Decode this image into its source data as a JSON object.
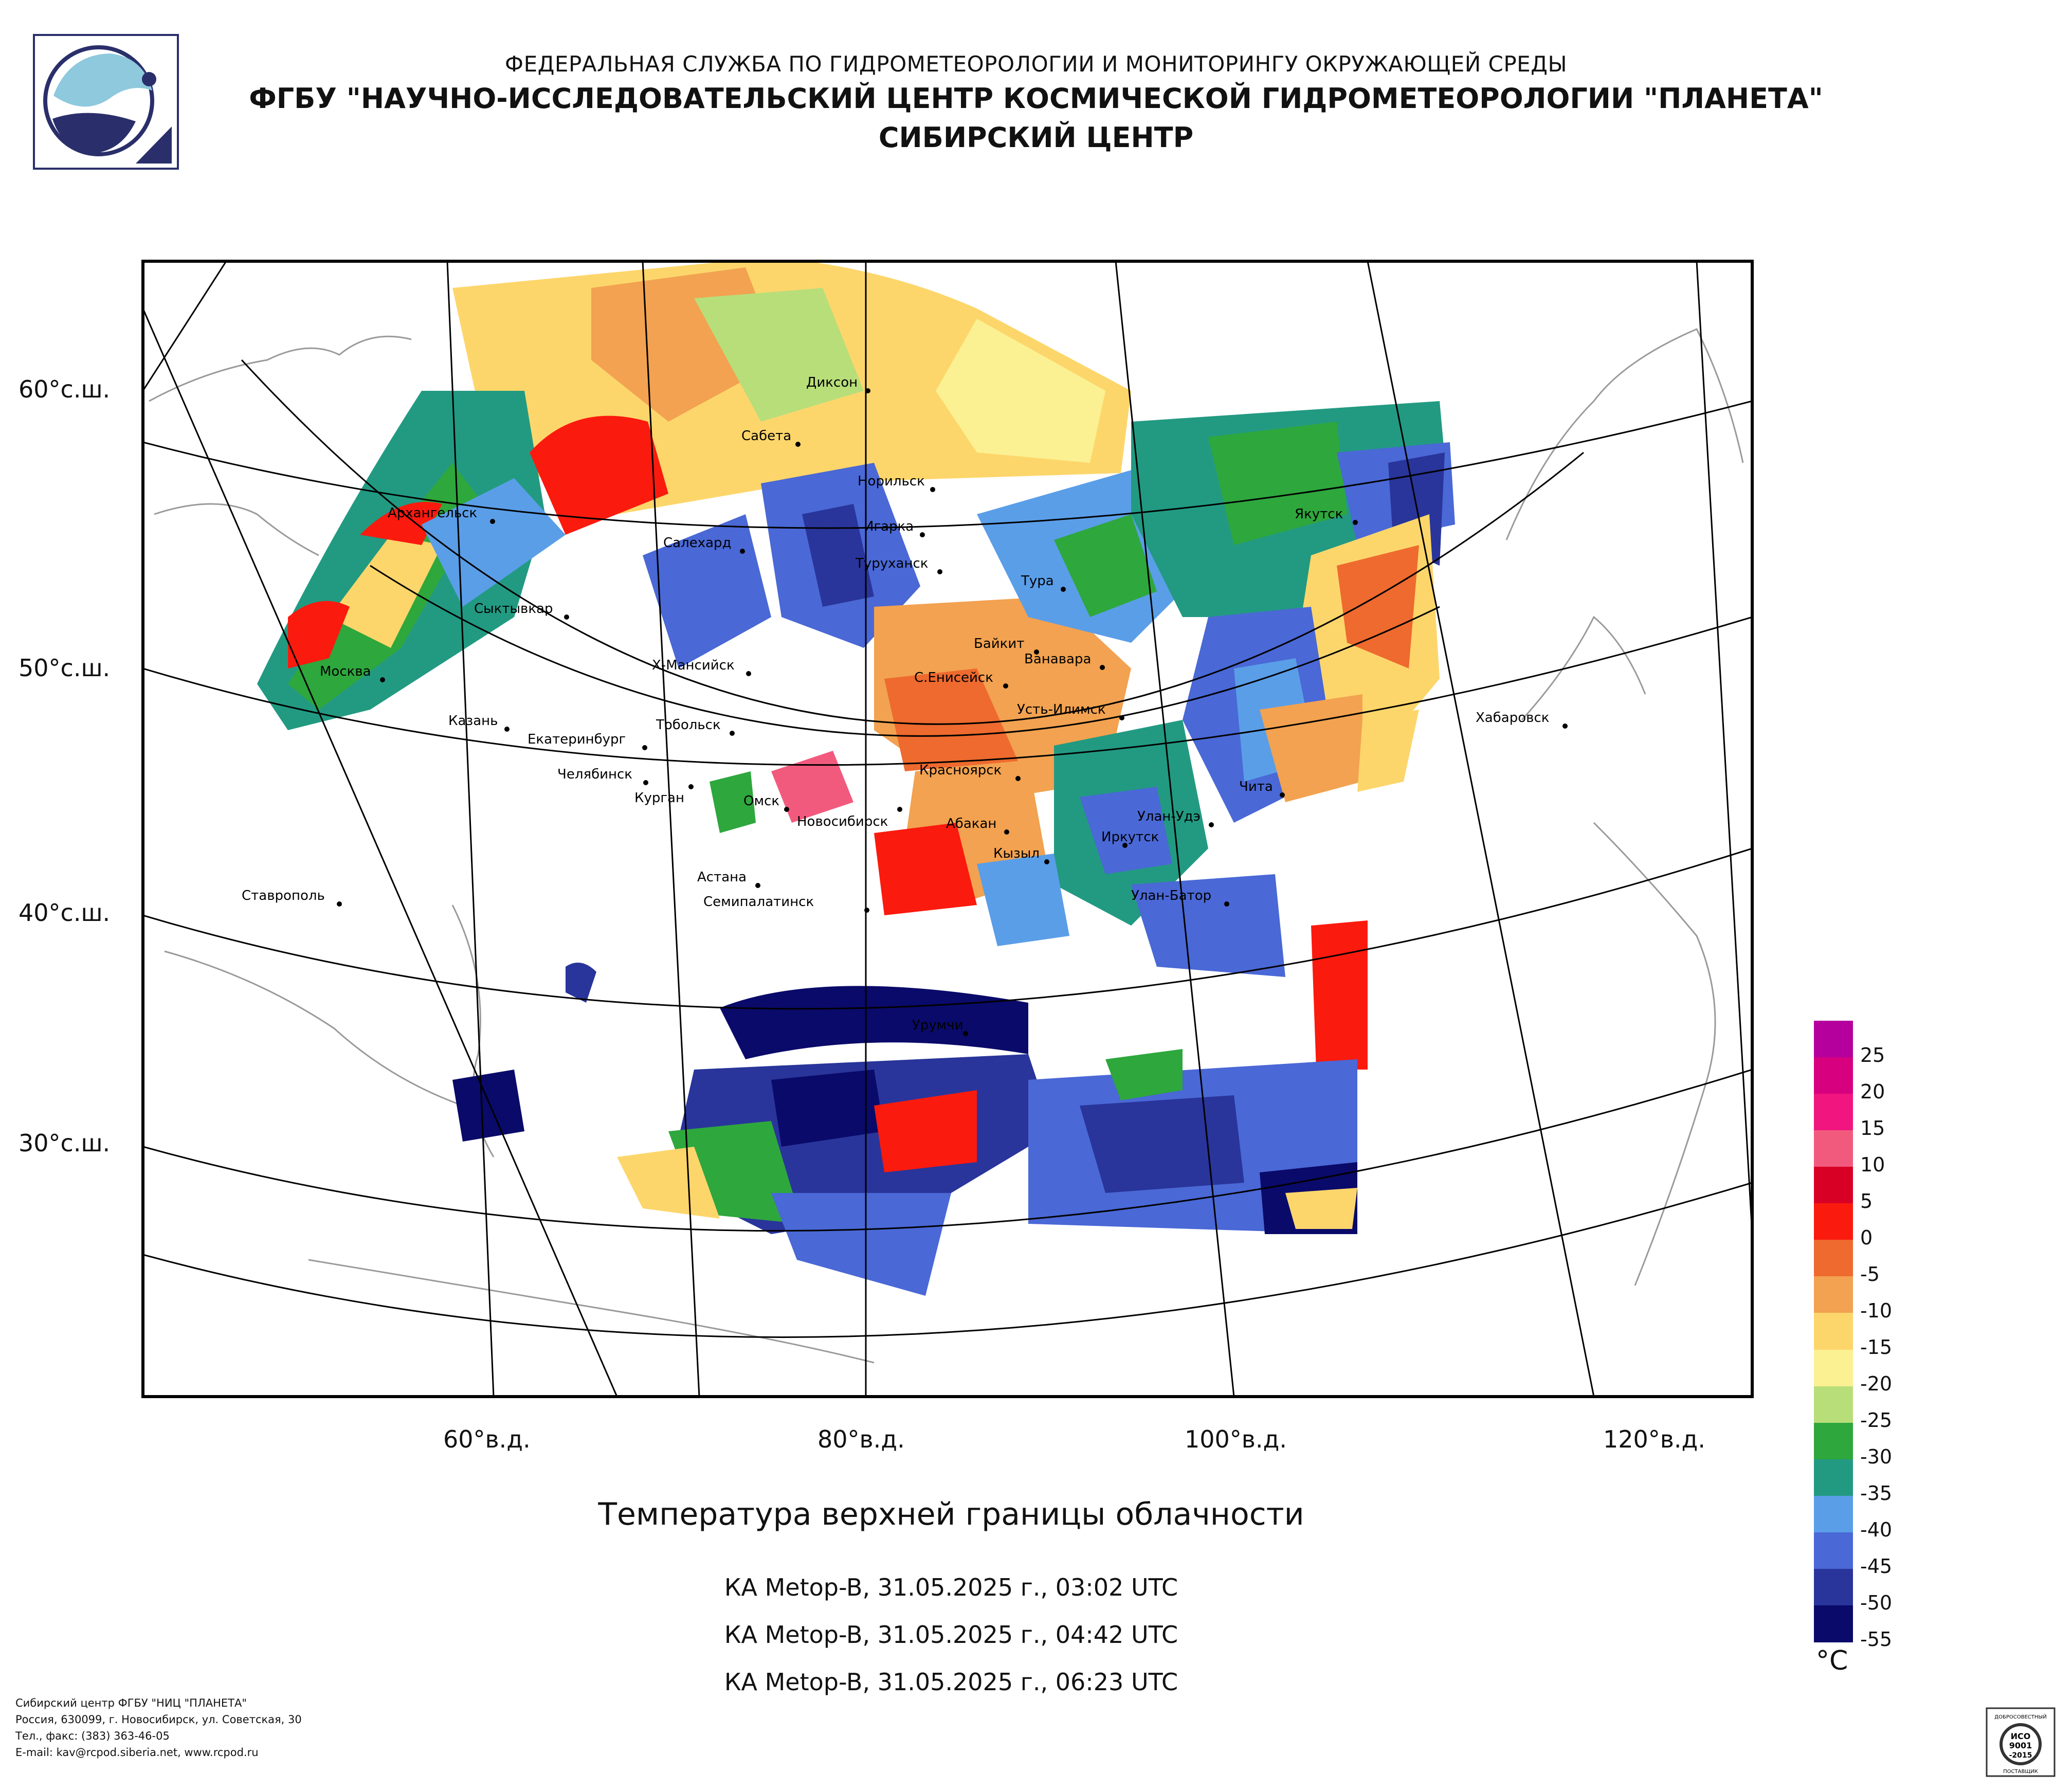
{
  "header": {
    "line1": "ФЕДЕРАЛЬНАЯ СЛУЖБА ПО ГИДРОМЕТЕОРОЛОГИИ И МОНИТОРИНГУ ОКРУЖАЮЩЕЙ СРЕДЫ",
    "line2": "ФГБУ \"НАУЧНО-ИССЛЕДОВАТЕЛЬСКИЙ ЦЕНТР КОСМИЧЕСКОЙ ГИДРОМЕТЕОРОЛОГИИ \"ПЛАНЕТА\"",
    "line3": "СИБИРСКИЙ ЦЕНТР"
  },
  "map": {
    "lat_labels": [
      "60°с.ш.",
      "50°с.ш.",
      "40°с.ш.",
      "30°с.ш."
    ],
    "lon_labels": [
      "60°в.д.",
      "80°в.д.",
      "100°в.д.",
      "120°в.д."
    ],
    "cities": [
      {
        "name": "Диксон"
      },
      {
        "name": "Сабета"
      },
      {
        "name": "Норильск"
      },
      {
        "name": "Архангельск"
      },
      {
        "name": "Салехард"
      },
      {
        "name": "Игарка"
      },
      {
        "name": "Туруханск"
      },
      {
        "name": "Тура"
      },
      {
        "name": "Якутск"
      },
      {
        "name": "Сыктывкар"
      },
      {
        "name": "Байкит"
      },
      {
        "name": "Ванавара"
      },
      {
        "name": "Москва"
      },
      {
        "name": "Х-Мансийск"
      },
      {
        "name": "С.Енисейск"
      },
      {
        "name": "Усть-Илимск"
      },
      {
        "name": "Хабаровск"
      },
      {
        "name": "Казань"
      },
      {
        "name": "Тобольск"
      },
      {
        "name": "Екатеринбург"
      },
      {
        "name": "Красноярск"
      },
      {
        "name": "Чита"
      },
      {
        "name": "Челябинск"
      },
      {
        "name": "Курган"
      },
      {
        "name": "Омск"
      },
      {
        "name": "Новосибирск"
      },
      {
        "name": "Абакан"
      },
      {
        "name": "Улан-Удэ"
      },
      {
        "name": "Иркутск"
      },
      {
        "name": "Кызыл"
      },
      {
        "name": "Астана"
      },
      {
        "name": "Улан-Батор"
      },
      {
        "name": "Ставрополь"
      },
      {
        "name": "Семипалатинск"
      },
      {
        "name": "Урумчи"
      }
    ]
  },
  "title": "Температура верхней границы облачности",
  "satellite_passes": [
    "КА Metop-B, 31.05.2025 г., 03:02 UTC",
    "КА Metop-B, 31.05.2025 г., 04:42 UTC",
    "КА Metop-B, 31.05.2025 г., 06:23 UTC"
  ],
  "legend": {
    "unit": "°C",
    "ticks": [
      "25",
      "20",
      "15",
      "10",
      "5",
      "0",
      "-5",
      "-10",
      "-15",
      "-20",
      "-25",
      "-30",
      "-35",
      "-40",
      "-45",
      "-50",
      "-55"
    ],
    "colors": [
      "#b5009e",
      "#d7007f",
      "#f0157f",
      "#f25a7d",
      "#d80024",
      "#fb1a0e",
      "#ee6a2e",
      "#f2a250",
      "#fdd66b",
      "#fbf192",
      "#b8de7a",
      "#2ea73d",
      "#229a82",
      "#5a9ee8",
      "#4a68d6",
      "#29359a",
      "#0a0a6a"
    ]
  },
  "footer": {
    "line1": "Сибирский центр ФГБУ \"НИЦ \"ПЛАНЕТА\"",
    "line2": "Россия, 630099, г. Новосибирск, ул. Советская, 30",
    "line3": "Тел., факс: (383) 363-46-05",
    "line4": "E-mail: kav@rcpod.siberia.net, www.rcpod.ru"
  },
  "certificate": {
    "top": "ДОБРОСОВЕСТНЫЙ",
    "mid1": "ИСО",
    "mid2": "9001",
    "mid3": "-2015",
    "bottom": "ПОСТАВЩИК"
  }
}
